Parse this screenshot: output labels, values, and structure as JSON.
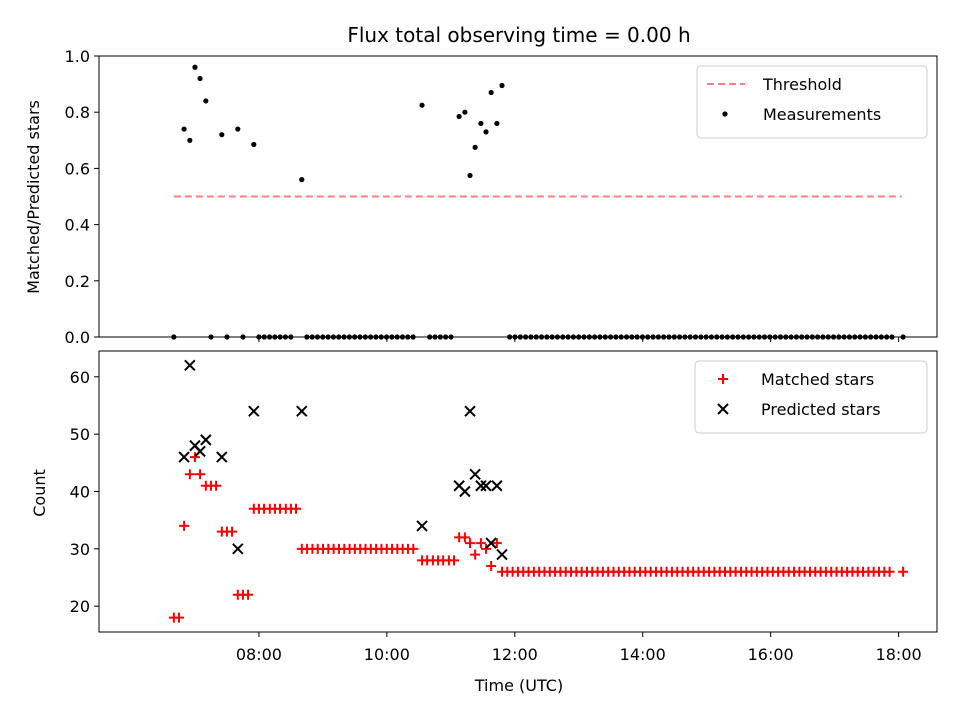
{
  "chart_data": [
    {
      "type": "scatter",
      "title": "Flux total observing time = 0.00 h",
      "xlabel": "",
      "ylabel": "Matched/Predicted stars",
      "xlim_hours": [
        5.5,
        18.6
      ],
      "ylim": [
        0,
        1.0
      ],
      "yticks": [
        0.0,
        0.2,
        0.4,
        0.6,
        0.8,
        1.0
      ],
      "ytick_labels": [
        "0.0",
        "0.2",
        "0.4",
        "0.6",
        "0.8",
        "1.0"
      ],
      "xticks_hours": [
        8,
        10,
        12,
        14,
        16,
        18
      ],
      "show_x_tick_labels": false,
      "grid": false,
      "legend_position": "upper right",
      "threshold": {
        "name": "Threshold",
        "color": "#ff7f7f",
        "style": "dashed",
        "x": [
          6.67,
          18.05
        ],
        "y": 0.5
      },
      "series": [
        {
          "name": "Measurements",
          "color": "#000000",
          "marker": "dot",
          "points": [
            [
              6.83,
              0.74
            ],
            [
              6.92,
              0.7
            ],
            [
              7.0,
              0.96
            ],
            [
              7.08,
              0.92
            ],
            [
              7.17,
              0.84
            ],
            [
              7.42,
              0.72
            ],
            [
              7.67,
              0.74
            ],
            [
              7.92,
              0.685
            ],
            [
              8.67,
              0.56
            ],
            [
              10.55,
              0.825
            ],
            [
              11.13,
              0.785
            ],
            [
              11.22,
              0.8
            ],
            [
              11.3,
              0.575
            ],
            [
              11.38,
              0.675
            ],
            [
              11.47,
              0.76
            ],
            [
              11.55,
              0.73
            ],
            [
              11.63,
              0.87
            ],
            [
              11.72,
              0.76
            ],
            [
              11.8,
              0.895
            ]
          ],
          "zero_valued": [
            {
              "x_from": 6.67,
              "x_to": 6.75,
              "step": 0.083
            },
            {
              "x_from": 7.25,
              "x_to": 7.33,
              "step": 0.083
            },
            {
              "x_from": 7.5,
              "x_to": 7.58,
              "step": 0.083
            },
            {
              "x_from": 7.75,
              "x_to": 7.83,
              "step": 0.083
            },
            {
              "x_from": 8.0,
              "x_to": 8.58,
              "step": 0.083
            },
            {
              "x_from": 8.75,
              "x_to": 10.45,
              "step": 0.083
            },
            {
              "x_from": 10.67,
              "x_to": 11.05,
              "step": 0.083
            },
            {
              "x_from": 11.92,
              "x_to": 17.92,
              "step": 0.083
            },
            {
              "x_from": 18.07,
              "x_to": 18.07,
              "step": 0.083
            }
          ]
        }
      ]
    },
    {
      "type": "scatter",
      "title": "",
      "xlabel": "Time (UTC)",
      "ylabel": "Count",
      "xlim_hours": [
        5.5,
        18.6
      ],
      "ylim": [
        15.5,
        64.5
      ],
      "yticks": [
        20,
        30,
        40,
        50,
        60
      ],
      "ytick_labels": [
        "20",
        "30",
        "40",
        "50",
        "60"
      ],
      "xticks_hours": [
        8,
        10,
        12,
        14,
        16,
        18
      ],
      "xtick_labels": [
        "08:00",
        "10:00",
        "12:00",
        "14:00",
        "16:00",
        "18:00"
      ],
      "grid": false,
      "legend_position": "upper right",
      "series": [
        {
          "name": "Matched stars",
          "color": "#ff0000",
          "marker": "plus",
          "points": [
            [
              6.67,
              18
            ],
            [
              6.75,
              18
            ],
            [
              6.83,
              34
            ],
            [
              6.92,
              43
            ],
            [
              7.0,
              46
            ],
            [
              7.08,
              43
            ],
            [
              7.17,
              41
            ],
            [
              7.25,
              41
            ],
            [
              7.33,
              41
            ],
            [
              7.42,
              33
            ],
            [
              7.5,
              33
            ],
            [
              7.58,
              33
            ],
            [
              7.67,
              22
            ],
            [
              7.75,
              22
            ],
            [
              7.83,
              22
            ],
            [
              7.92,
              37
            ],
            [
              8.0,
              37
            ],
            [
              8.08,
              37
            ],
            [
              8.17,
              37
            ],
            [
              8.25,
              37
            ],
            [
              8.33,
              37
            ],
            [
              8.42,
              37
            ],
            [
              8.5,
              37
            ],
            [
              8.58,
              37
            ],
            [
              10.55,
              28
            ],
            [
              10.63,
              28
            ],
            [
              10.72,
              28
            ],
            [
              10.8,
              28
            ],
            [
              10.88,
              28
            ],
            [
              10.97,
              28
            ],
            [
              11.05,
              28
            ],
            [
              11.13,
              32
            ],
            [
              11.22,
              32
            ],
            [
              11.3,
              31
            ],
            [
              11.38,
              29
            ],
            [
              11.47,
              31
            ],
            [
              11.55,
              30
            ],
            [
              11.63,
              27
            ],
            [
              11.72,
              31
            ],
            [
              18.07,
              26
            ]
          ],
          "runs": [
            {
              "x_from": 8.67,
              "x_to": 10.47,
              "step": 0.083,
              "y": 30
            },
            {
              "x_from": 11.8,
              "x_to": 17.9,
              "step": 0.083,
              "y": 26
            }
          ]
        },
        {
          "name": "Predicted stars",
          "color": "#000000",
          "marker": "x",
          "points": [
            [
              6.83,
              46
            ],
            [
              6.92,
              62
            ],
            [
              7.0,
              48
            ],
            [
              7.08,
              47
            ],
            [
              7.17,
              49
            ],
            [
              7.42,
              46
            ],
            [
              7.67,
              30
            ],
            [
              7.92,
              54
            ],
            [
              8.67,
              54
            ],
            [
              10.55,
              34
            ],
            [
              11.13,
              41
            ],
            [
              11.22,
              40
            ],
            [
              11.3,
              54
            ],
            [
              11.38,
              43
            ],
            [
              11.47,
              41
            ],
            [
              11.55,
              41
            ],
            [
              11.63,
              31
            ],
            [
              11.72,
              41
            ],
            [
              11.8,
              29
            ]
          ]
        }
      ]
    }
  ]
}
